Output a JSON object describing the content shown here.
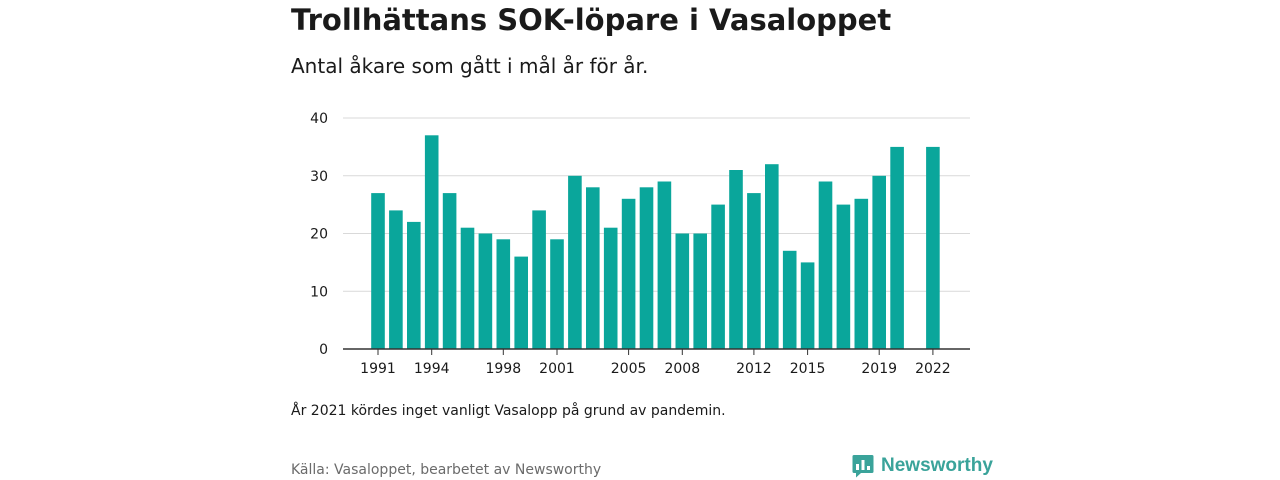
{
  "header": {
    "title": "Trollhättans SOK-löpare i Vasaloppet",
    "subtitle": "Antal åkare som gått i mål år för år."
  },
  "footer": {
    "note": "År 2021 kördes inget vanligt Vasalopp på grund av pandemin.",
    "source": "Källa: Vasaloppet, bearbetet av Newsworthy",
    "brand": "Newsworthy"
  },
  "colors": {
    "bar": "#0aa69b",
    "grid": "#d9d9d9",
    "axis": "#333333",
    "brand": "#3aa39a"
  },
  "chart_data": {
    "type": "bar",
    "title": "Trollhättans SOK-löpare i Vasaloppet",
    "subtitle": "Antal åkare som gått i mål år för år.",
    "xlabel": "",
    "ylabel": "",
    "categories": [
      1991,
      1992,
      1993,
      1994,
      1995,
      1996,
      1997,
      1998,
      1999,
      2000,
      2001,
      2002,
      2003,
      2004,
      2005,
      2006,
      2007,
      2008,
      2009,
      2010,
      2011,
      2012,
      2013,
      2014,
      2015,
      2016,
      2017,
      2018,
      2019,
      2020,
      2021,
      2022
    ],
    "values": [
      27,
      24,
      22,
      37,
      27,
      21,
      20,
      19,
      16,
      24,
      19,
      30,
      28,
      21,
      26,
      28,
      29,
      20,
      20,
      25,
      31,
      27,
      32,
      17,
      15,
      29,
      25,
      26,
      30,
      35,
      null,
      35
    ],
    "ylim": [
      0,
      40
    ],
    "yticks": [
      0,
      10,
      20,
      30,
      40
    ],
    "xtick_labels": [
      "1991",
      "1994",
      "1998",
      "2001",
      "2005",
      "2008",
      "2012",
      "2015",
      "2019",
      "2022"
    ],
    "grid": true,
    "legend": "none"
  }
}
